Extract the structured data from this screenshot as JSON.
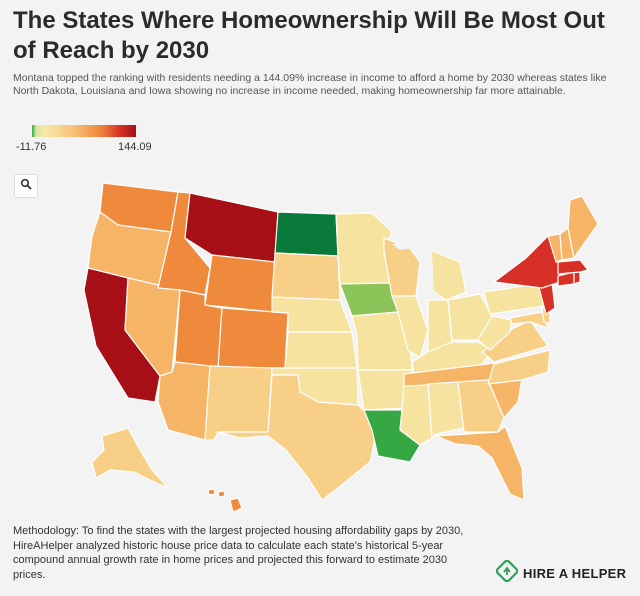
{
  "title": "The States Where Homeownership Will Be Most Out of Reach by 2030",
  "subtitle": "Montana topped the ranking with residents needing a 144.09% increase in income to afford a home by 2030 whereas states like North Dakota, Louisiana and Iowa showing no increase in income needed, making homeownership far more attainable.",
  "legend": {
    "min": "-11.76",
    "max": "144.09"
  },
  "methodology": "Methodology: To find the states with the largest projected housing affordability gaps by 2030, HireAHelper analyzed historic house price data to calculate each state's historical 5-year compound annual growth rate in home prices and projected this forward to estimate 2030 prices.",
  "brand": "HIRE A HELPER",
  "icons": {
    "search": "search-icon",
    "logo": "hireahelper-logo-icon"
  },
  "colors": {
    "darkred": "#a50f15",
    "red": "#d73027",
    "orange": "#ef8a3c",
    "lightorange": "#f6b466",
    "peach": "#f8cf86",
    "yellow": "#f7e3a0",
    "green": "#35a844",
    "darkgreen": "#0a7a3a",
    "lightgreen": "#8cc45a"
  },
  "map_data": {
    "WA": "orange",
    "OR": "lightorange",
    "CA": "darkred",
    "ID": "orange",
    "NV": "lightorange",
    "MT": "darkred",
    "WY": "orange",
    "UT": "orange",
    "AZ": "lightorange",
    "CO": "orange",
    "NM": "peach",
    "ND": "darkgreen",
    "SD": "peach",
    "NE": "yellow",
    "KS": "yellow",
    "OK": "yellow",
    "TX": "peach",
    "MN": "yellow",
    "IA": "lightgreen",
    "MO": "yellow",
    "AR": "yellow",
    "LA": "green",
    "WI": "peach",
    "IL": "yellow",
    "MS": "yellow",
    "MI": "yellow",
    "IN": "yellow",
    "OH": "yellow",
    "KY": "yellow",
    "TN": "lightorange",
    "AL": "yellow",
    "GA": "peach",
    "FL": "lightorange",
    "SC": "lightorange",
    "NC": "peach",
    "VA": "peach",
    "WV": "yellow",
    "PA": "yellow",
    "NY": "red",
    "NJ": "red",
    "ME": "lightorange",
    "VT": "lightorange",
    "NH": "lightorange",
    "MA": "red",
    "RI": "red",
    "CT": "red",
    "DE": "peach",
    "MD": "peach",
    "AK": "peach",
    "HI": "orange"
  }
}
